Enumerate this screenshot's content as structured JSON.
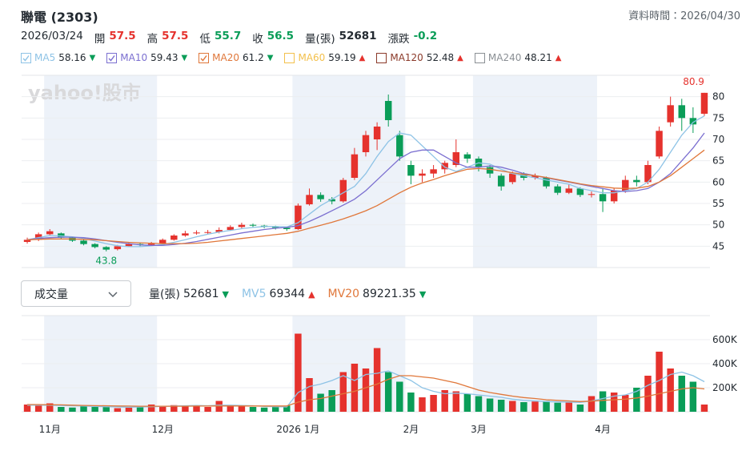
{
  "header": {
    "title": "聯電 (2303)",
    "data_time": "資料時間：2026/04/30",
    "date": "2026/03/24",
    "quote": [
      {
        "label": "開",
        "value": 57.5,
        "color": "#e5322d"
      },
      {
        "label": "高",
        "value": 57.5,
        "color": "#e5322d"
      },
      {
        "label": "低",
        "value": 55.7,
        "color": "#0a9d58"
      },
      {
        "label": "收",
        "value": 56.5,
        "color": "#0a9d58"
      },
      {
        "label": "量(張)",
        "value": 52681,
        "color": "#232a31"
      },
      {
        "label": "漲跌",
        "value": -0.2,
        "color": "#0a9d58"
      }
    ]
  },
  "volume_select": "成交量",
  "chart_data": [
    {
      "type": "candlestick",
      "watermark": "yahoo!股市",
      "up_color": "#e5322d",
      "down_color": "#0a9d58",
      "max_label": "80.9",
      "min_label": "43.8",
      "ylim": [
        40,
        85
      ],
      "yticks": [
        45,
        50,
        55,
        60,
        65,
        70,
        75,
        80
      ],
      "grid": true,
      "open": [
        46.0,
        46.5,
        47.8,
        48.0,
        47.0,
        46.3,
        45.5,
        44.8,
        44.3,
        45.0,
        45.5,
        45.3,
        45.6,
        46.5,
        47.5,
        48.0,
        48.2,
        48.3,
        48.8,
        49.5,
        50.0,
        49.8,
        49.6,
        49.3,
        49.0,
        54.8,
        57.0,
        56.0,
        55.5,
        61.0,
        67.0,
        70.0,
        79.0,
        71.0,
        64.0,
        61.5,
        62.0,
        63.0,
        64.0,
        66.5,
        65.5,
        63.5,
        61.5,
        60.0,
        62.0,
        61.0,
        61.0,
        59.0,
        57.5,
        58.5,
        57.0,
        57.2,
        55.5,
        58.0,
        60.5,
        60.0,
        66.0,
        74.0,
        78.0,
        75.0,
        76.0
      ],
      "high": [
        47.0,
        48.2,
        49.0,
        48.2,
        47.2,
        46.5,
        45.7,
        45.0,
        45.3,
        45.8,
        45.9,
        46.0,
        46.8,
        47.8,
        48.6,
        48.7,
        48.8,
        49.4,
        49.9,
        50.5,
        50.3,
        50.0,
        49.8,
        49.6,
        55.0,
        58.5,
        57.6,
        56.5,
        61.0,
        68.0,
        72.0,
        74.0,
        80.5,
        72.0,
        65.0,
        63.0,
        64.0,
        65.0,
        70.0,
        67.0,
        66.0,
        64.0,
        62.0,
        62.5,
        62.3,
        62.0,
        61.3,
        59.5,
        59.6,
        58.8,
        57.8,
        58.5,
        58.5,
        61.5,
        61.5,
        65.0,
        73.0,
        80.0,
        79.5,
        77.5,
        80.9
      ],
      "low": [
        45.6,
        46.2,
        47.5,
        46.6,
        46.0,
        45.2,
        44.5,
        43.8,
        44.0,
        44.8,
        45.0,
        45.1,
        45.4,
        46.3,
        47.2,
        47.7,
        47.8,
        48.0,
        48.6,
        49.2,
        49.4,
        49.2,
        48.9,
        48.6,
        48.8,
        54.5,
        55.4,
        54.8,
        55.2,
        60.5,
        66.0,
        67.5,
        73.0,
        65.0,
        59.5,
        60.0,
        61.0,
        62.0,
        63.5,
        64.5,
        62.5,
        61.0,
        58.0,
        59.5,
        60.4,
        60.6,
        58.5,
        57.0,
        57.2,
        56.5,
        56.4,
        53.0,
        55.0,
        57.5,
        59.0,
        59.5,
        65.5,
        73.0,
        72.0,
        71.5,
        75.5
      ],
      "close": [
        46.5,
        47.8,
        48.5,
        47.0,
        46.3,
        45.5,
        44.8,
        44.2,
        45.0,
        45.5,
        45.3,
        45.6,
        46.5,
        47.5,
        48.0,
        48.2,
        48.3,
        48.8,
        49.5,
        50.0,
        49.8,
        49.6,
        49.3,
        49.0,
        54.5,
        57.0,
        56.0,
        55.5,
        60.5,
        66.5,
        71.0,
        73.0,
        74.5,
        66.0,
        61.5,
        62.0,
        63.0,
        64.5,
        67.0,
        65.5,
        63.5,
        62.0,
        59.0,
        62.0,
        61.0,
        61.5,
        59.0,
        57.5,
        58.5,
        57.0,
        57.2,
        55.5,
        58.0,
        60.5,
        60.0,
        64.0,
        72.0,
        78.0,
        75.0,
        73.5,
        80.9
      ],
      "series": [
        {
          "name": "MA5",
          "last": 58.16,
          "arrow": "▼",
          "arrow_color": "#0a9d58",
          "color": "#8ec3e6",
          "checked": true,
          "values": [
            46.5,
            47,
            47.5,
            47.4,
            47.2,
            46.8,
            46.2,
            45.6,
            45.1,
            44.9,
            44.9,
            45.1,
            45.4,
            45.9,
            46.5,
            47.2,
            47.8,
            48.3,
            48.7,
            49.1,
            49.4,
            49.6,
            49.6,
            49.5,
            50.5,
            52.5,
            54.5,
            56,
            57.5,
            59,
            62,
            66,
            69.5,
            71.5,
            71,
            68.5,
            66,
            63.5,
            62.5,
            63.5,
            64.5,
            64.2,
            63,
            62,
            61.5,
            61,
            60.5,
            60,
            59.5,
            58.5,
            58,
            57.5,
            57.5,
            58,
            58.5,
            60,
            63,
            67,
            71,
            74,
            75.5
          ]
        },
        {
          "name": "MA10",
          "last": 59.43,
          "arrow": "▼",
          "arrow_color": "#0a9d58",
          "color": "#7b6fd0",
          "checked": true,
          "values": [
            46.5,
            46.8,
            47,
            47.1,
            47.1,
            47,
            46.7,
            46.3,
            45.9,
            45.6,
            45.3,
            45.2,
            45.2,
            45.4,
            45.7,
            46.1,
            46.6,
            47.1,
            47.6,
            48.1,
            48.5,
            48.9,
            49.2,
            49.4,
            49.8,
            50.8,
            52,
            53.3,
            54.6,
            56,
            58,
            60.5,
            63,
            65.5,
            67,
            67.5,
            67.5,
            66,
            64.5,
            63.5,
            63.5,
            63.8,
            63.5,
            62.8,
            62,
            61.5,
            61,
            60.5,
            60,
            59.5,
            59,
            58.5,
            58,
            57.8,
            58,
            58.5,
            60,
            62,
            65,
            68,
            71.5
          ]
        },
        {
          "name": "MA20",
          "last": 61.2,
          "arrow": "▼",
          "arrow_color": "#0a9d58",
          "color": "#e0773a",
          "checked": true,
          "values": [
            46.5,
            46.6,
            46.7,
            46.7,
            46.7,
            46.6,
            46.5,
            46.3,
            46.1,
            45.9,
            45.8,
            45.7,
            45.6,
            45.6,
            45.6,
            45.7,
            45.9,
            46.2,
            46.5,
            46.8,
            47.1,
            47.4,
            47.7,
            48,
            48.5,
            49.2,
            49.9,
            50.6,
            51.4,
            52.3,
            53.3,
            54.5,
            56,
            57.5,
            58.8,
            59.8,
            60.6,
            61.5,
            62.3,
            63,
            63.2,
            63,
            62.6,
            62.2,
            61.8,
            61.5,
            61.1,
            60.6,
            60.1,
            59.6,
            59.2,
            58.9,
            58.6,
            58.5,
            58.6,
            59,
            60,
            61.5,
            63.5,
            65.5,
            67.5
          ]
        },
        {
          "name": "MA60",
          "last": 59.19,
          "arrow": "▲",
          "arrow_color": "#e5322d",
          "color": "#f3c04c",
          "checked": false
        },
        {
          "name": "MA120",
          "last": 52.48,
          "arrow": "▲",
          "arrow_color": "#e5322d",
          "color": "#8b3a2a",
          "checked": false
        },
        {
          "name": "MA240",
          "last": 48.21,
          "arrow": "▲",
          "arrow_color": "#e5322d",
          "color": "#8a8f94",
          "checked": false
        }
      ]
    },
    {
      "type": "bar",
      "categories": [
        null,
        null,
        "11月",
        null,
        null,
        null,
        null,
        null,
        null,
        null,
        null,
        null,
        "12月",
        null,
        null,
        null,
        null,
        null,
        null,
        null,
        null,
        null,
        null,
        null,
        "2026 1月",
        null,
        null,
        null,
        null,
        null,
        null,
        null,
        null,
        null,
        "2月",
        null,
        null,
        null,
        null,
        null,
        "3月",
        null,
        null,
        null,
        null,
        null,
        null,
        null,
        null,
        null,
        null,
        "4月",
        null,
        null,
        null,
        null,
        null,
        null,
        null,
        null,
        null
      ],
      "ylim": [
        0,
        800000
      ],
      "yticks": [
        {
          "value": 200000,
          "label": "200K"
        },
        {
          "value": 400000,
          "label": "400K"
        },
        {
          "value": 600000,
          "label": "600K"
        }
      ],
      "grid": true,
      "series": [
        {
          "name": "量(張)",
          "last": 52681,
          "arrow": "▼",
          "arrow_color": "#0a9d58",
          "color": "#232a31",
          "values": [
            60000,
            50000,
            70000,
            40000,
            35000,
            50000,
            40000,
            45000,
            30000,
            35000,
            40000,
            60000,
            45000,
            55000,
            50000,
            45000,
            40000,
            90000,
            50000,
            45000,
            40000,
            35000,
            40000,
            50000,
            650000,
            280000,
            150000,
            180000,
            330000,
            400000,
            360000,
            530000,
            330000,
            250000,
            160000,
            120000,
            140000,
            180000,
            170000,
            150000,
            130000,
            110000,
            100000,
            90000,
            80000,
            85000,
            90000,
            75000,
            80000,
            60000,
            130000,
            170000,
            160000,
            140000,
            200000,
            300000,
            500000,
            360000,
            300000,
            250000,
            60000
          ]
        },
        {
          "name": "MV5",
          "last": 69344,
          "arrow": "▲",
          "arrow_color": "#e5322d",
          "color": "#8ec3e6",
          "values": [
            55000,
            55000,
            55000,
            52000,
            50000,
            48000,
            44000,
            42000,
            40000,
            38000,
            40000,
            42000,
            45000,
            48000,
            50000,
            52000,
            50000,
            55000,
            55000,
            52000,
            50000,
            45000,
            42000,
            40000,
            160000,
            210000,
            230000,
            260000,
            300000,
            260000,
            310000,
            320000,
            340000,
            300000,
            260000,
            200000,
            170000,
            150000,
            155000,
            150000,
            140000,
            130000,
            120000,
            105000,
            95000,
            90000,
            85000,
            82000,
            80000,
            78000,
            90000,
            110000,
            130000,
            140000,
            170000,
            220000,
            260000,
            310000,
            330000,
            300000,
            250000
          ]
        },
        {
          "name": "MV20",
          "last": 89221.35,
          "arrow": "▼",
          "arrow_color": "#0a9d58",
          "color": "#e0773a",
          "values": [
            60000,
            60000,
            58000,
            57000,
            55000,
            53000,
            51000,
            50000,
            48000,
            47000,
            46000,
            46000,
            46000,
            46000,
            46000,
            47000,
            47000,
            48000,
            48000,
            48000,
            48000,
            48000,
            48000,
            48000,
            80000,
            100000,
            110000,
            130000,
            150000,
            170000,
            200000,
            230000,
            270000,
            300000,
            300000,
            290000,
            280000,
            260000,
            240000,
            210000,
            180000,
            160000,
            145000,
            130000,
            118000,
            110000,
            100000,
            95000,
            90000,
            85000,
            88000,
            95000,
            100000,
            105000,
            115000,
            130000,
            150000,
            170000,
            190000,
            200000,
            190000
          ]
        }
      ]
    }
  ]
}
